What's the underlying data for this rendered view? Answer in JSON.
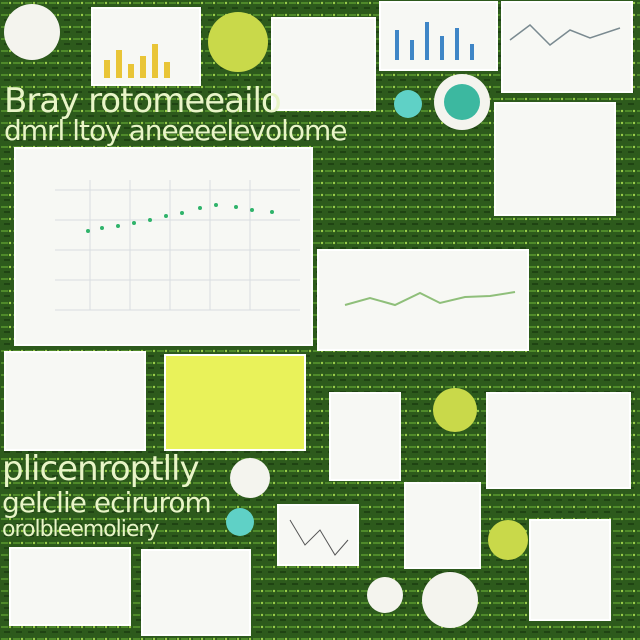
{
  "headlines": [
    "Bray rotomeeailo",
    "dmrl ltoy aneeeelevolome",
    "plicenroptlly",
    "gelclie ecirurom",
    "orolbleemoliery"
  ]
}
